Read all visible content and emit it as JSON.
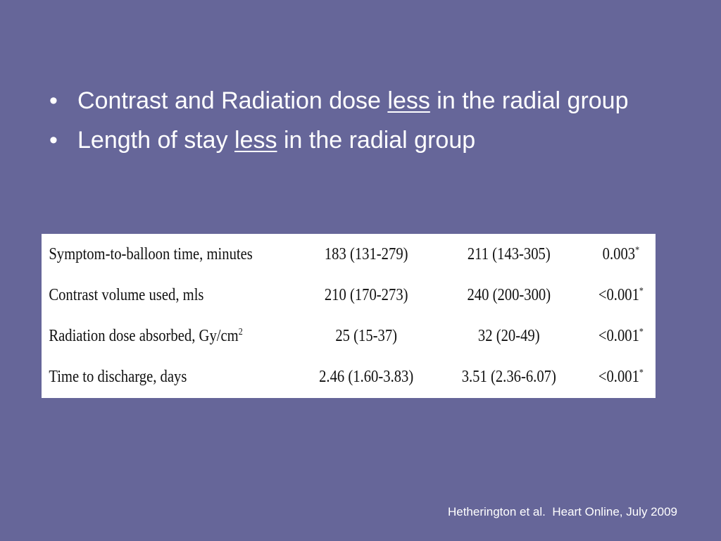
{
  "bullets": [
    {
      "before": "Contrast and Radiation dose ",
      "underlined": "less",
      "after": " in the radial group"
    },
    {
      "before": "Length of stay ",
      "underlined": "less",
      "after": " in the radial group"
    }
  ],
  "bullet_symbol": "•",
  "table": {
    "rows": [
      {
        "label": "Symptom-to-balloon time, minutes",
        "label_sup": "",
        "radial": "183 (131-279)",
        "femoral": "211 (143-305)",
        "p_value": "0.003",
        "p_sup": "*"
      },
      {
        "label": "Contrast volume used, mls",
        "label_sup": "",
        "radial": "210 (170-273)",
        "femoral": "240 (200-300)",
        "p_value": "<0.001",
        "p_sup": "*"
      },
      {
        "label": "Radiation dose absorbed, Gy/cm",
        "label_sup": "2",
        "radial": "25 (15-37)",
        "femoral": "32 (20-49)",
        "p_value": "<0.001",
        "p_sup": "*"
      },
      {
        "label": "Time to discharge, days",
        "label_sup": "",
        "radial": "2.46 (1.60-3.83)",
        "femoral": "3.51 (2.36-6.07)",
        "p_value": "<0.001",
        "p_sup": "*"
      }
    ]
  },
  "citation": "Hetherington et al.  Heart Online, July 2009",
  "colors": {
    "background": "#666699",
    "text": "#ffffff",
    "table_background": "#ffffff"
  }
}
